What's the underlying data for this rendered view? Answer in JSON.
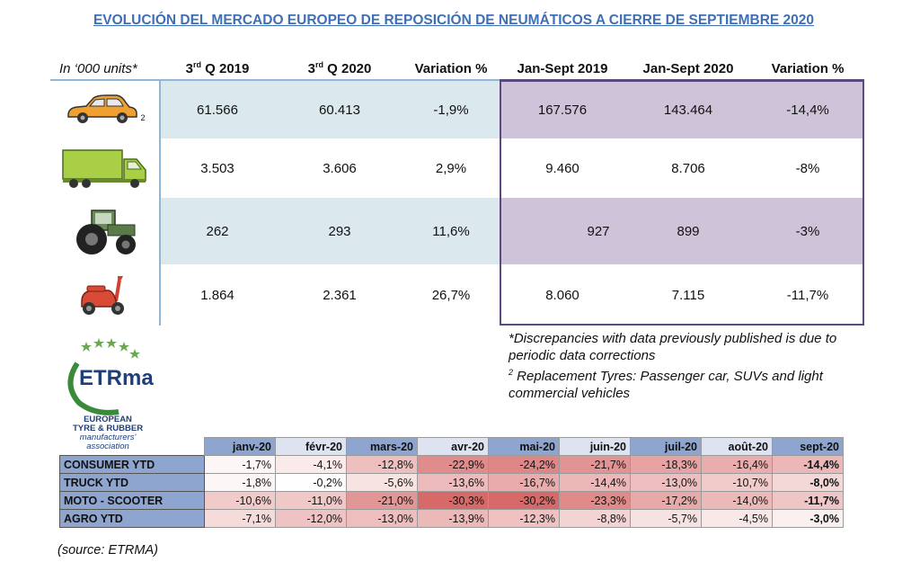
{
  "title": "EVOLUCIÓN DEL MERCADO EUROPEO DE REPOSICIÓN DE NEUMÁTICOS A CIERRE DE SEPTIEMBRE 2020",
  "main_table": {
    "units": "In ‘000 units*",
    "headers": {
      "q2019_base": "3",
      "q2019_sup": "rd",
      "q2019_rest": " Q 2019",
      "q2020_base": "3",
      "q2020_sup": "rd",
      "q2020_rest": " Q 2020",
      "var1": "Variation %",
      "ytd2019": "Jan-Sept 2019",
      "ytd2020": "Jan-Sept 2020",
      "var2": "Variation %"
    },
    "rows": [
      {
        "icon": "car-icon",
        "icon_sup": "2",
        "q2019": "61.566",
        "q2020": "60.413",
        "var1": "-1,9%",
        "ytd2019": "167.576",
        "ytd2020": "143.464",
        "var2": "-14,4%"
      },
      {
        "icon": "truck-icon",
        "q2019": "3.503",
        "q2020": "3.606",
        "var1": "2,9%",
        "ytd2019": "9.460",
        "ytd2020": "8.706",
        "var2": "-8%"
      },
      {
        "icon": "tractor-icon",
        "q2019": "262",
        "q2020": "293",
        "var1": "11,6%",
        "ytd2019": "927",
        "ytd2020": "899",
        "var2": "-3%"
      },
      {
        "icon": "scooter-icon",
        "q2019": "1.864",
        "q2020": "2.361",
        "var1": "26,7%",
        "ytd2019": "8.060",
        "ytd2020": "7.115",
        "var2": "-11,7%"
      }
    ]
  },
  "notes": {
    "line1": "*Discrepancies with data previously published is due to periodic data corrections",
    "sup": "2",
    "line2": " Replacement Tyres: Passenger car, SUVs and light commercial vehicles"
  },
  "logo": {
    "mark": "ETRma",
    "line1": "EUROPEAN",
    "line2": "TYRE & RUBBER",
    "line3": "manufacturers'",
    "line4": "association"
  },
  "monthly_table": {
    "months": [
      "janv-20",
      "févr-20",
      "mars-20",
      "avr-20",
      "mai-20",
      "juin-20",
      "juil-20",
      "août-20",
      "sept-20"
    ],
    "rows": [
      {
        "label": "CONSUMER YTD",
        "values": [
          "-1,7%",
          "-4,1%",
          "-12,8%",
          "-22,9%",
          "-24,2%",
          "-21,7%",
          "-18,3%",
          "-16,4%",
          "-14,4%"
        ]
      },
      {
        "label": "TRUCK YTD",
        "values": [
          "-1,8%",
          "-0,2%",
          "-5,6%",
          "-13,6%",
          "-16,7%",
          "-14,4%",
          "-13,0%",
          "-10,7%",
          "-8,0%"
        ]
      },
      {
        "label": "MOTO - SCOOTER",
        "values": [
          "-10,6%",
          "-11,0%",
          "-21,0%",
          "-30,3%",
          "-30,2%",
          "-23,3%",
          "-17,2%",
          "-14,0%",
          "-11,7%"
        ]
      },
      {
        "label": "AGRO YTD",
        "values": [
          "-7,1%",
          "-12,0%",
          "-13,0%",
          "-13,9%",
          "-12,3%",
          "-8,8%",
          "-5,7%",
          "-4,5%",
          "-3,0%"
        ]
      }
    ]
  },
  "source": "(source: ETRMA)"
}
